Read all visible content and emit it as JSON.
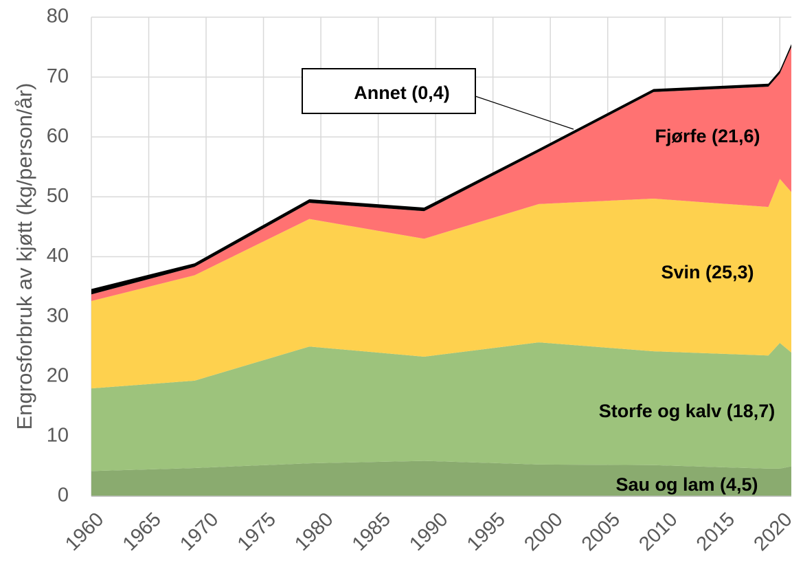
{
  "chart_data": {
    "type": "stacked_area",
    "y_label": "Engrosforbruk av kjøtt (kg/person/år)",
    "x": [
      1960,
      1969,
      1979,
      1989,
      1999,
      2009,
      2019,
      2020,
      2021
    ],
    "series": [
      {
        "name": "Sau og lam (4,5)",
        "color": "#8aab6f",
        "values": [
          4.2,
          4.7,
          5.5,
          5.9,
          5.3,
          5.2,
          4.6,
          4.6,
          5.0
        ]
      },
      {
        "name": "Storfe og kalv (18,7)",
        "color": "#9dc37c",
        "values": [
          13.8,
          14.6,
          19.5,
          17.4,
          20.4,
          19.0,
          18.9,
          21.0,
          19.0
        ]
      },
      {
        "name": "Svin (25,3)",
        "color": "#fed14e",
        "values": [
          14.6,
          17.6,
          21.3,
          19.7,
          23.1,
          25.5,
          24.8,
          27.4,
          26.8
        ]
      },
      {
        "name": "Fjørfe (21,6)",
        "color": "#ff7272",
        "values": [
          1.1,
          1.4,
          2.7,
          4.6,
          8.7,
          17.8,
          20.1,
          17.6,
          24.2
        ]
      },
      {
        "name": "Annet (0,4)",
        "color": "#000000",
        "values": [
          0.9,
          0.6,
          0.6,
          0.6,
          0.5,
          0.5,
          0.5,
          0.5,
          0.5
        ]
      }
    ],
    "xlim": [
      1960,
      2021
    ],
    "ylim": [
      0,
      80
    ],
    "xticks": [
      1960,
      1965,
      1970,
      1975,
      1980,
      1985,
      1990,
      1995,
      2000,
      2005,
      2010,
      2015,
      2020
    ],
    "yticks": [
      0,
      10,
      20,
      30,
      40,
      50,
      60,
      70,
      80
    ],
    "grid": true
  }
}
